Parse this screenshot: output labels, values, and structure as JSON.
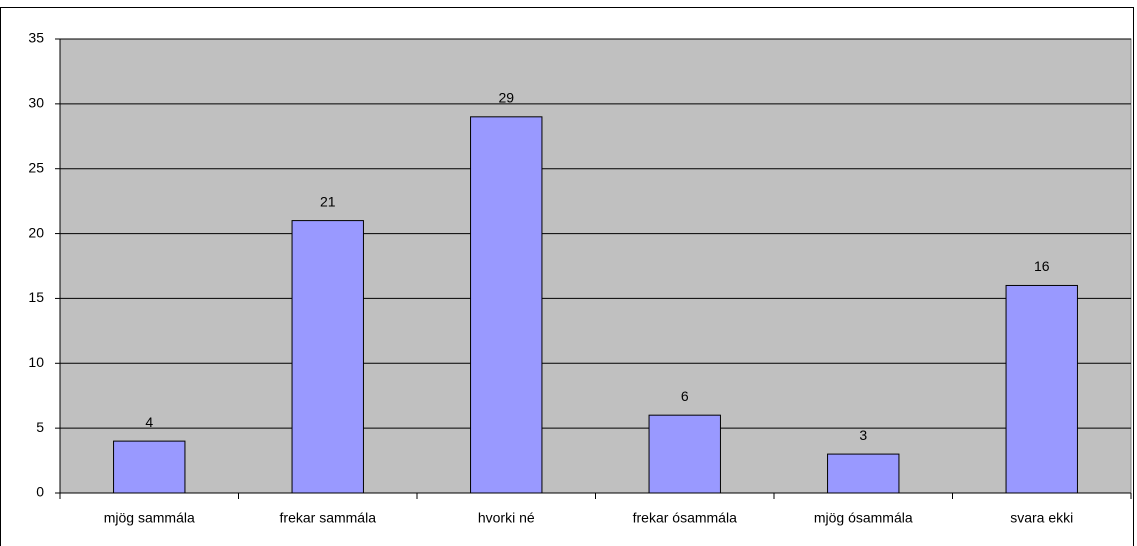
{
  "chart_data": {
    "type": "bar",
    "categories": [
      "mjög sammála",
      "frekar sammála",
      "hvorki né",
      "frekar ósammála",
      "mjög ósammála",
      "svara ekki"
    ],
    "values": [
      4,
      21,
      29,
      6,
      3,
      16
    ],
    "color": "#9999ff",
    "ylim": [
      0,
      35
    ],
    "yticks": [
      0,
      5,
      10,
      15,
      20,
      25,
      30,
      35
    ],
    "grid": true
  }
}
